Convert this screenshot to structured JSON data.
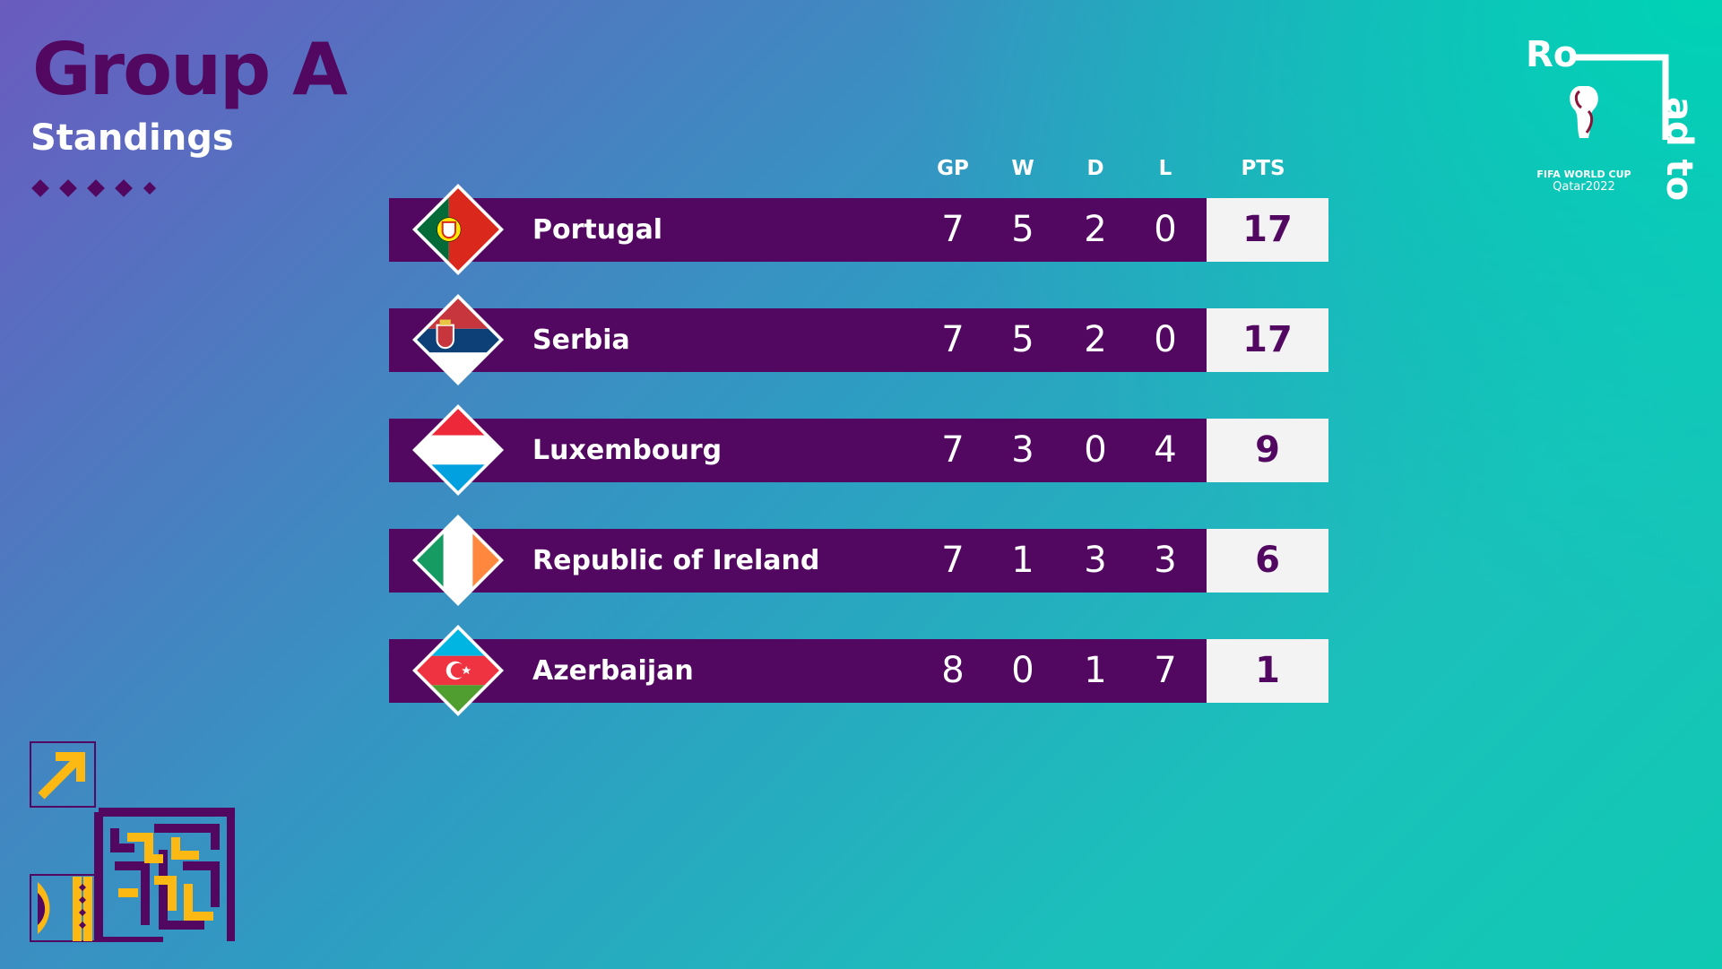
{
  "header": {
    "title": "Group A",
    "subtitle": "Standings"
  },
  "columns": [
    "GP",
    "W",
    "D",
    "L",
    "PTS"
  ],
  "teams": [
    {
      "name": "Portugal",
      "gp": "7",
      "w": "5",
      "d": "2",
      "l": "0",
      "pts": "17",
      "flag_icon": "portugal-flag-icon"
    },
    {
      "name": "Serbia",
      "gp": "7",
      "w": "5",
      "d": "2",
      "l": "0",
      "pts": "17",
      "flag_icon": "serbia-flag-icon"
    },
    {
      "name": "Luxembourg",
      "gp": "7",
      "w": "3",
      "d": "0",
      "l": "4",
      "pts": "9",
      "flag_icon": "luxembourg-flag-icon"
    },
    {
      "name": "Republic of Ireland",
      "gp": "7",
      "w": "1",
      "d": "3",
      "l": "3",
      "pts": "6",
      "flag_icon": "ireland-flag-icon"
    },
    {
      "name": "Azerbaijan",
      "gp": "8",
      "w": "0",
      "d": "1",
      "l": "7",
      "pts": "1",
      "flag_icon": "azerbaijan-flag-icon"
    }
  ],
  "logo": {
    "road_text_1": "Ro",
    "road_text_2": "ad to",
    "line1": "FIFA WORLD CUP",
    "line2": "Qatar2022"
  },
  "colors": {
    "primary": "#520861",
    "white": "#ffffff",
    "pts_bg": "#f3f3f3",
    "accent_yellow": "#fdb913"
  }
}
